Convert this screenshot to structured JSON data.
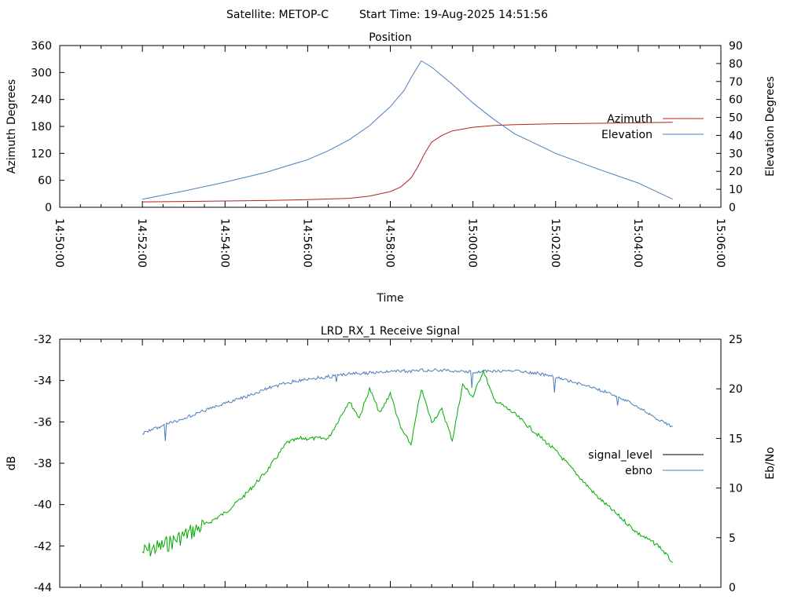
{
  "header": {
    "satellite": "Satellite: METOP-C",
    "start_time": "Start Time: 19-Aug-2025 14:51:56"
  },
  "chart_data": [
    {
      "type": "line",
      "title": "Position",
      "xlabel": "Time",
      "ylabel": "Azimuth Degrees",
      "y2label": "Elevation Degrees",
      "xlim": [
        "14:50:00",
        "15:06:00"
      ],
      "ylim": [
        0,
        360
      ],
      "y2lim": [
        0,
        90
      ],
      "x_ticks": [
        "14:50:00",
        "14:52:00",
        "14:54:00",
        "14:56:00",
        "14:58:00",
        "15:00:00",
        "15:02:00",
        "15:04:00",
        "15:06:00"
      ],
      "y_ticks": [
        "0",
        "60",
        "120",
        "180",
        "240",
        "300",
        "360"
      ],
      "y2_ticks": [
        "0",
        "10",
        "20",
        "30",
        "40",
        "50",
        "60",
        "70",
        "80",
        "90"
      ],
      "legend_position": "right",
      "series": [
        {
          "name": "Azimuth",
          "axis": "left",
          "color": "#b22222",
          "x": [
            "14:52:00",
            "14:53:00",
            "14:54:00",
            "14:55:00",
            "14:56:00",
            "14:57:00",
            "14:57:30",
            "14:58:00",
            "14:58:15",
            "14:58:30",
            "14:58:40",
            "14:58:50",
            "14:59:00",
            "14:59:15",
            "14:59:30",
            "15:00:00",
            "15:00:30",
            "15:01:00",
            "15:02:00",
            "15:03:00",
            "15:04:00",
            "15:04:50"
          ],
          "values": [
            12,
            13,
            14,
            15,
            17,
            20,
            25,
            35,
            45,
            65,
            90,
            120,
            145,
            160,
            170,
            178,
            182,
            184,
            186,
            187,
            188,
            189
          ]
        },
        {
          "name": "Elevation",
          "axis": "right",
          "color": "#4a7ebb",
          "x": [
            "14:52:00",
            "14:53:00",
            "14:54:00",
            "14:55:00",
            "14:56:00",
            "14:56:30",
            "14:57:00",
            "14:57:30",
            "14:58:00",
            "14:58:20",
            "14:58:30",
            "14:58:45",
            "14:59:00",
            "14:59:30",
            "15:00:00",
            "15:00:30",
            "15:01:00",
            "15:02:00",
            "15:03:00",
            "15:04:00",
            "15:04:50"
          ],
          "values": [
            4.5,
            9,
            14,
            19.5,
            26.5,
            31.5,
            37.5,
            45.5,
            56,
            65,
            72,
            81.5,
            78,
            68.5,
            58,
            49,
            41,
            30,
            21.5,
            13.5,
            4.5
          ]
        }
      ]
    },
    {
      "type": "line",
      "title": "LRD_RX_1 Receive Signal",
      "xlabel": "",
      "ylabel": "dB",
      "y2label": "Eb/No",
      "xlim": [
        "14:50:00",
        "15:06:00"
      ],
      "ylim": [
        -44,
        -32
      ],
      "y2lim": [
        0,
        25
      ],
      "y_ticks": [
        "-32",
        "-34",
        "-36",
        "-38",
        "-40",
        "-42",
        "-44"
      ],
      "y2_ticks": [
        "0",
        "5",
        "10",
        "15",
        "20",
        "25"
      ],
      "legend_position": "right",
      "legend": [
        "signal_level",
        "ebno"
      ],
      "series": [
        {
          "name": "signal_level",
          "axis": "left",
          "legend_color": "#000000",
          "color": "#00aa00",
          "x": [
            "14:52:00",
            "14:52:30",
            "14:53:00",
            "14:53:30",
            "14:54:00",
            "14:54:30",
            "14:55:00",
            "14:55:30",
            "14:55:50",
            "14:56:30",
            "14:57:00",
            "14:57:15",
            "14:57:30",
            "14:57:45",
            "14:58:00",
            "14:58:15",
            "14:58:30",
            "14:58:45",
            "14:59:00",
            "14:59:15",
            "14:59:30",
            "14:59:45",
            "15:00:00",
            "15:00:15",
            "15:00:30",
            "15:01:00",
            "15:01:30",
            "15:02:00",
            "15:02:30",
            "15:03:00",
            "15:03:30",
            "15:04:00",
            "15:04:30",
            "15:04:50"
          ],
          "values": [
            -42.3,
            -42.0,
            -41.5,
            -41.0,
            -40.4,
            -39.5,
            -38.4,
            -37.0,
            -36.8,
            -36.8,
            -35.0,
            -35.8,
            -34.4,
            -35.6,
            -34.6,
            -36.3,
            -37.1,
            -34.4,
            -36.0,
            -35.4,
            -36.9,
            -34.2,
            -34.8,
            -33.5,
            -34.9,
            -35.6,
            -36.5,
            -37.4,
            -38.5,
            -39.6,
            -40.5,
            -41.4,
            -42.0,
            -42.8
          ]
        },
        {
          "name": "ebno",
          "axis": "right",
          "color": "#4a7ebb",
          "x": [
            "14:52:00",
            "14:52:30",
            "14:53:00",
            "14:53:30",
            "14:54:00",
            "14:54:30",
            "14:55:00",
            "14:55:30",
            "14:56:00",
            "14:56:30",
            "14:57:00",
            "14:57:30",
            "14:58:00",
            "14:58:30",
            "14:59:00",
            "14:59:30",
            "15:00:00",
            "15:00:30",
            "15:01:00",
            "15:01:30",
            "15:02:00",
            "15:02:30",
            "15:03:00",
            "15:03:30",
            "15:04:00",
            "15:04:30",
            "15:04:50"
          ],
          "values": [
            15.5,
            16.3,
            17.0,
            17.8,
            18.5,
            19.2,
            20.0,
            20.6,
            21.0,
            21.2,
            21.5,
            21.6,
            21.8,
            21.8,
            21.9,
            21.8,
            21.7,
            21.8,
            21.8,
            21.6,
            21.2,
            20.6,
            20.0,
            19.2,
            18.2,
            16.8,
            16.2
          ]
        }
      ]
    }
  ]
}
